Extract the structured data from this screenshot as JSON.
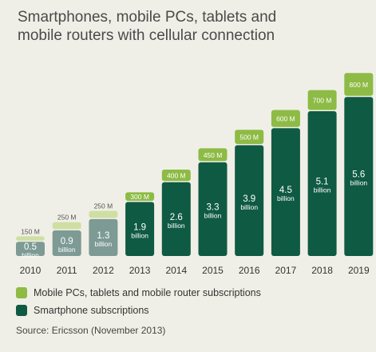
{
  "title_lines": [
    "Smartphones, mobile PCs, tablets and",
    "mobile routers with cellular connection"
  ],
  "colors": {
    "mobile_pc": "#8dbb45",
    "mobile_pc_light": "#cfdfa4",
    "smartphone": "#0f5a43",
    "smartphone_light": "#7d9a94",
    "background": "#f0efe7"
  },
  "chart_data": {
    "type": "bar",
    "stacked": true,
    "categories": [
      "2010",
      "2011",
      "2012",
      "2013",
      "2014",
      "2015",
      "2016",
      "2017",
      "2018",
      "2019"
    ],
    "series": [
      {
        "name": "Smartphone subscriptions",
        "values": [
          0.5,
          0.9,
          1.3,
          1.9,
          2.6,
          3.3,
          3.9,
          4.5,
          5.1,
          5.6
        ],
        "labels": [
          "0.5",
          "0.9",
          "1.3",
          "1.9",
          "2.6",
          "3.3",
          "3.9",
          "4.5",
          "5.1",
          "5.6"
        ],
        "unit_label": "billion"
      },
      {
        "name": "Mobile PCs, tablets and mobile router subscriptions",
        "values": [
          0.15,
          0.25,
          0.25,
          0.3,
          0.4,
          0.45,
          0.5,
          0.6,
          0.7,
          0.8
        ],
        "labels": [
          "150 M",
          "250 M",
          "250 M",
          "300 M",
          "400 M",
          "450 M",
          "500 M",
          "600 M",
          "700 M",
          "800 M"
        ]
      }
    ],
    "historical_years": 3,
    "ylim": [
      0,
      6.5
    ],
    "grid": false,
    "legend_position": "bottom-left"
  },
  "source": "Source: Ericsson (November 2013)"
}
